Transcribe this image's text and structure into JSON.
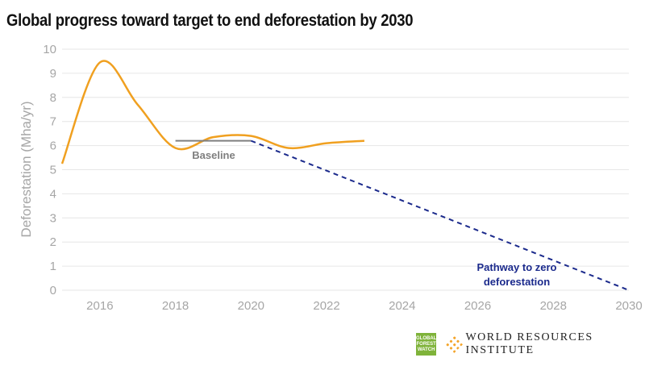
{
  "chart_data": {
    "type": "line",
    "title": "Global progress toward target to end deforestation by 2030",
    "ylabel": "Deforestation (Mha/yr)",
    "xlabel": "",
    "xlim": [
      2015,
      2030
    ],
    "ylim": [
      0,
      10
    ],
    "x_ticks": [
      "2016",
      "2018",
      "2020",
      "2022",
      "2024",
      "2026",
      "2028",
      "2030"
    ],
    "y_ticks": [
      "0",
      "1",
      "2",
      "3",
      "4",
      "5",
      "6",
      "7",
      "8",
      "9",
      "10"
    ],
    "grid": "horizontal",
    "series": [
      {
        "color": "#f0a020",
        "style": "solid-smooth",
        "x": [
          2015,
          2016,
          2017,
          2018,
          2019,
          2020,
          2021,
          2022,
          2023
        ],
        "y": [
          5.25,
          9.45,
          7.7,
          5.9,
          6.35,
          6.4,
          5.9,
          6.1,
          6.2
        ]
      },
      {
        "name": "Baseline",
        "color": "#7f7f7f",
        "style": "solid",
        "x": [
          2018,
          2020
        ],
        "y": [
          6.2,
          6.2
        ]
      },
      {
        "name": "Pathway to zero deforestation",
        "color": "#1b2a8c",
        "style": "dashed",
        "x": [
          2020,
          2030
        ],
        "y": [
          6.2,
          0
        ]
      }
    ],
    "annotations": [
      "Baseline",
      "Pathway to zero",
      "deforestation"
    ]
  },
  "logos": {
    "gfw": [
      "GLOBAL",
      "FOREST",
      "WATCH"
    ],
    "wri": "WORLD RESOURCES INSTITUTE"
  }
}
